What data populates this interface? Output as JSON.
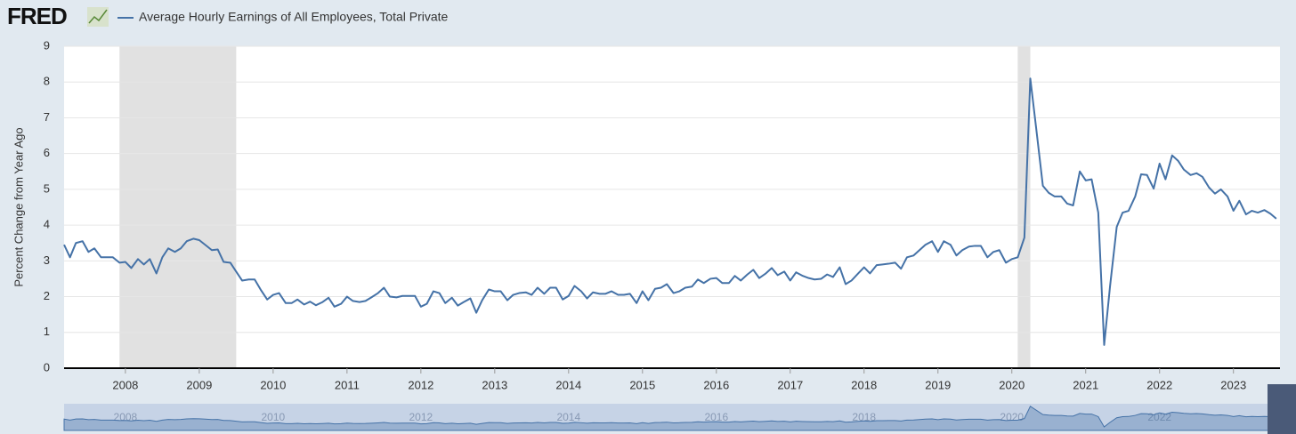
{
  "logo": "FRED",
  "chart_data": {
    "type": "line",
    "series": [
      {
        "name": "Average Hourly Earnings of All Employees, Total Private",
        "color": "#4572a7",
        "x": [
          2007.17,
          2007.25,
          2007.33,
          2007.42,
          2007.5,
          2007.58,
          2007.67,
          2007.75,
          2007.83,
          2007.92,
          2008.0,
          2008.08,
          2008.17,
          2008.25,
          2008.33,
          2008.42,
          2008.5,
          2008.58,
          2008.67,
          2008.75,
          2008.83,
          2008.92,
          2009.0,
          2009.08,
          2009.17,
          2009.25,
          2009.33,
          2009.42,
          2009.5,
          2009.58,
          2009.67,
          2009.75,
          2009.83,
          2009.92,
          2010.0,
          2010.08,
          2010.17,
          2010.25,
          2010.33,
          2010.42,
          2010.5,
          2010.58,
          2010.67,
          2010.75,
          2010.83,
          2010.92,
          2011.0,
          2011.08,
          2011.17,
          2011.25,
          2011.33,
          2011.42,
          2011.5,
          2011.58,
          2011.67,
          2011.75,
          2011.83,
          2011.92,
          2012.0,
          2012.08,
          2012.17,
          2012.25,
          2012.33,
          2012.42,
          2012.5,
          2012.58,
          2012.67,
          2012.75,
          2012.83,
          2012.92,
          2013.0,
          2013.08,
          2013.17,
          2013.25,
          2013.33,
          2013.42,
          2013.5,
          2013.58,
          2013.67,
          2013.75,
          2013.83,
          2013.92,
          2014.0,
          2014.08,
          2014.17,
          2014.25,
          2014.33,
          2014.42,
          2014.5,
          2014.58,
          2014.67,
          2014.75,
          2014.83,
          2014.92,
          2015.0,
          2015.08,
          2015.17,
          2015.25,
          2015.33,
          2015.42,
          2015.5,
          2015.58,
          2015.67,
          2015.75,
          2015.83,
          2015.92,
          2016.0,
          2016.08,
          2016.17,
          2016.25,
          2016.33,
          2016.42,
          2016.5,
          2016.58,
          2016.67,
          2016.75,
          2016.83,
          2016.92,
          2017.0,
          2017.08,
          2017.17,
          2017.25,
          2017.33,
          2017.42,
          2017.5,
          2017.58,
          2017.67,
          2017.75,
          2017.83,
          2017.92,
          2018.0,
          2018.08,
          2018.17,
          2018.25,
          2018.33,
          2018.42,
          2018.5,
          2018.58,
          2018.67,
          2018.75,
          2018.83,
          2018.92,
          2019.0,
          2019.08,
          2019.17,
          2019.25,
          2019.33,
          2019.42,
          2019.5,
          2019.58,
          2019.67,
          2019.75,
          2019.83,
          2019.92,
          2020.0,
          2020.08,
          2020.17,
          2020.25,
          2020.33,
          2020.42,
          2020.5,
          2020.58,
          2020.67,
          2020.75,
          2020.83,
          2020.92,
          2021.0,
          2021.08,
          2021.17,
          2021.25,
          2021.33,
          2021.42,
          2021.5,
          2021.58,
          2021.67,
          2021.75,
          2021.83,
          2021.92,
          2022.0,
          2022.08,
          2022.17,
          2022.25,
          2022.33,
          2022.42,
          2022.5,
          2022.58,
          2022.67,
          2022.75,
          2022.83,
          2022.92,
          2023.0,
          2023.08,
          2023.17,
          2023.25,
          2023.33,
          2023.42,
          2023.5,
          2023.58
        ],
        "values": [
          3.45,
          3.1,
          3.5,
          3.55,
          3.25,
          3.35,
          3.1,
          3.1,
          3.1,
          2.95,
          2.97,
          2.8,
          3.05,
          2.9,
          3.05,
          2.65,
          3.1,
          3.35,
          3.25,
          3.35,
          3.55,
          3.62,
          3.58,
          3.45,
          3.3,
          3.32,
          2.97,
          2.95,
          2.7,
          2.45,
          2.48,
          2.48,
          2.2,
          1.92,
          2.05,
          2.1,
          1.82,
          1.82,
          1.92,
          1.78,
          1.86,
          1.76,
          1.85,
          1.97,
          1.72,
          1.8,
          2.0,
          1.88,
          1.85,
          1.88,
          1.98,
          2.1,
          2.25,
          2.0,
          1.98,
          2.02,
          2.02,
          2.02,
          1.72,
          1.8,
          2.15,
          2.1,
          1.82,
          1.97,
          1.75,
          1.85,
          1.95,
          1.55,
          1.9,
          2.2,
          2.15,
          2.15,
          1.9,
          2.05,
          2.1,
          2.12,
          2.05,
          2.25,
          2.08,
          2.25,
          2.25,
          1.92,
          2.02,
          2.3,
          2.15,
          1.95,
          2.12,
          2.08,
          2.08,
          2.15,
          2.05,
          2.05,
          2.08,
          1.82,
          2.15,
          1.9,
          2.22,
          2.25,
          2.35,
          2.1,
          2.15,
          2.25,
          2.28,
          2.48,
          2.38,
          2.5,
          2.52,
          2.38,
          2.38,
          2.58,
          2.45,
          2.62,
          2.75,
          2.52,
          2.65,
          2.8,
          2.6,
          2.7,
          2.45,
          2.68,
          2.58,
          2.52,
          2.48,
          2.5,
          2.62,
          2.55,
          2.82,
          2.35,
          2.45,
          2.65,
          2.82,
          2.65,
          2.88,
          2.9,
          2.92,
          2.95,
          2.78,
          3.1,
          3.15,
          3.3,
          3.45,
          3.55,
          3.25,
          3.55,
          3.45,
          3.15,
          3.3,
          3.4,
          3.42,
          3.42,
          3.1,
          3.25,
          3.3,
          2.95,
          3.05,
          3.1,
          3.65,
          8.1,
          6.7,
          5.1,
          4.9,
          4.8,
          4.8,
          4.6,
          4.55,
          5.5,
          5.25,
          5.28,
          4.35,
          0.65,
          2.3,
          3.95,
          4.35,
          4.4,
          4.8,
          5.42,
          5.4,
          5.02,
          5.72,
          5.28,
          5.95,
          5.8,
          5.55,
          5.4,
          5.45,
          5.35,
          5.05,
          4.88,
          5.0,
          4.8,
          4.4,
          4.68,
          4.3,
          4.4,
          4.35,
          4.42,
          4.32,
          4.18
        ]
      }
    ],
    "recessions": [
      [
        2007.92,
        2009.5
      ],
      [
        2020.08,
        2020.25
      ]
    ],
    "y_label": "Percent Change from Year Ago",
    "xlim": [
      2007.17,
      2023.63
    ],
    "xticks": [
      2008,
      2009,
      2010,
      2011,
      2012,
      2013,
      2014,
      2015,
      2016,
      2017,
      2018,
      2019,
      2020,
      2021,
      2022,
      2023
    ],
    "ylim": [
      0,
      9
    ],
    "yticks": [
      0,
      1,
      2,
      3,
      4,
      5,
      6,
      7,
      8,
      9
    ],
    "grid": true
  }
}
